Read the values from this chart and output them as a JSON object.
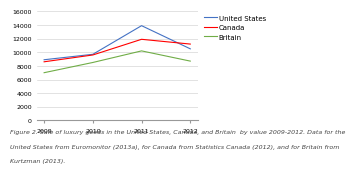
{
  "years": [
    2009,
    2010,
    2011,
    2012
  ],
  "united_states": [
    8900,
    9700,
    13900,
    10500
  ],
  "canada": [
    8600,
    9600,
    11900,
    11200
  ],
  "britain": [
    7000,
    8500,
    10200,
    8700
  ],
  "colors": {
    "united_states": "#4472C4",
    "canada": "#FF0000",
    "britain": "#70AD47"
  },
  "ylim": [
    0,
    16000
  ],
  "yticks": [
    0,
    2000,
    4000,
    6000,
    8000,
    10000,
    12000,
    14000,
    16000
  ],
  "legend_labels": [
    "United States",
    "Canada",
    "Britain"
  ],
  "caption_line1": "Figure 2. Sale of luxury goods in the United States, Canada, and Britain  by value 2009-2012. Data for the",
  "caption_line2": "United States from Euromonitor (2013a), for Canada from Statistics Canada (2012), and for Britain from",
  "caption_line3": "Kurtzman (2013).",
  "background_color": "#FFFFFF",
  "plot_bg_color": "#FFFFFF",
  "grid_color": "#CCCCCC",
  "axis_fontsize": 4.5,
  "legend_fontsize": 5.0,
  "caption_fontsize": 4.5
}
